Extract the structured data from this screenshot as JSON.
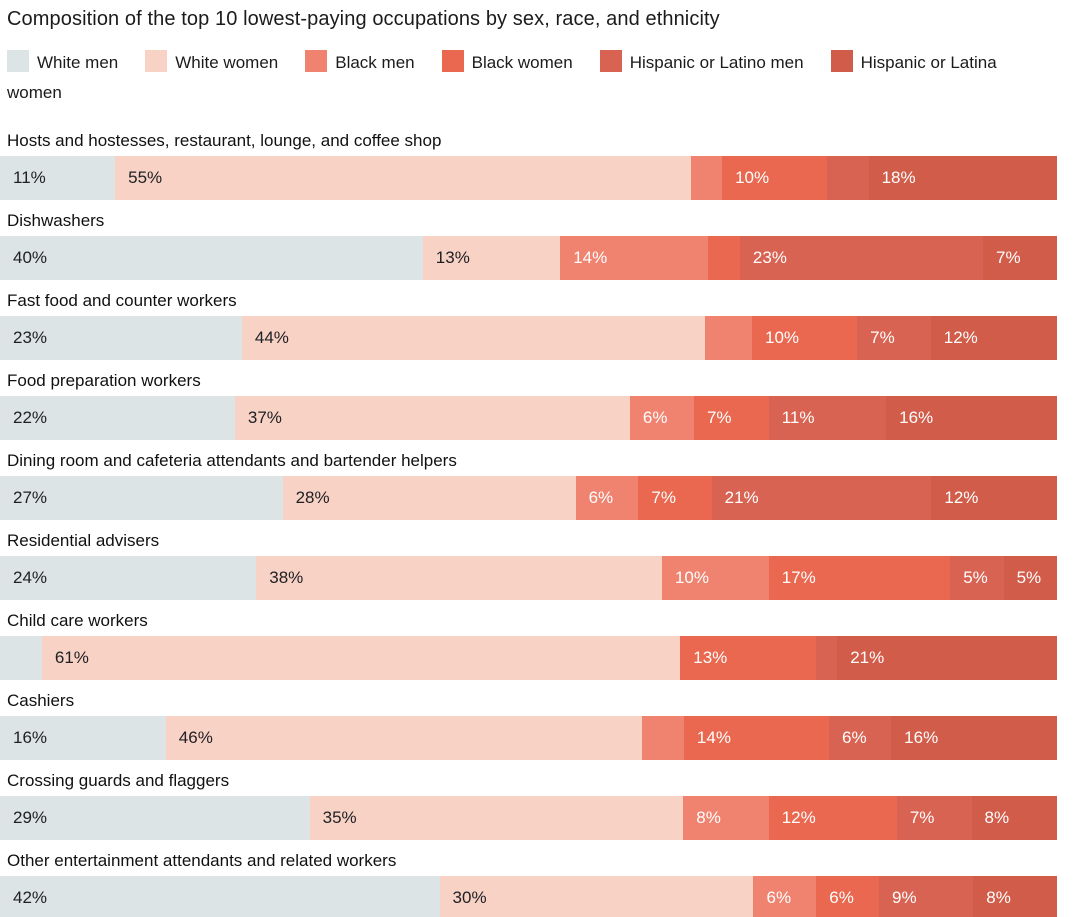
{
  "title": "Composition of the top 10 lowest-paying occupations by sex, race, and ethnicity",
  "chart_data": {
    "type": "bar",
    "stacked": true,
    "orientation": "horizontal",
    "unit": "percent",
    "title": "Composition of the top 10 lowest-paying occupations by sex, race, and ethnicity",
    "legend_position": "top",
    "legend": [
      "White men",
      "White women",
      "Black men",
      "Black women",
      "Hispanic or Latino men",
      "Hispanic or Latina women"
    ],
    "palette": {
      "White men": {
        "fill": "#dde4e6",
        "text": "#202124"
      },
      "White women": {
        "fill": "#f9d2c6",
        "text": "#202124"
      },
      "Black men": {
        "fill": "#f0836f",
        "text": "#ffffff"
      },
      "Black women": {
        "fill": "#e9684f",
        "text": "#ffffff"
      },
      "Hispanic or Latino men": {
        "fill": "#d96352",
        "text": "#ffffff"
      },
      "Hispanic or Latina women": {
        "fill": "#d25c4a",
        "text": "#ffffff"
      }
    },
    "background_strip_color": "#ededeb",
    "rows": [
      {
        "occupation": "Hosts and hostesses, restaurant, lounge, and coffee shop",
        "segments": [
          {
            "group": "White men",
            "value": 11,
            "label": "11%"
          },
          {
            "group": "White women",
            "value": 55,
            "label": "55%"
          },
          {
            "group": "Black men",
            "value": 3,
            "label": ""
          },
          {
            "group": "Black women",
            "value": 10,
            "label": "10%"
          },
          {
            "group": "Hispanic or Latino men",
            "value": 4,
            "label": ""
          },
          {
            "group": "Hispanic or Latina women",
            "value": 18,
            "label": "18%"
          }
        ]
      },
      {
        "occupation": "Dishwashers",
        "segments": [
          {
            "group": "White men",
            "value": 40,
            "label": "40%"
          },
          {
            "group": "White women",
            "value": 13,
            "label": "13%"
          },
          {
            "group": "Black men",
            "value": 14,
            "label": "14%"
          },
          {
            "group": "Black women",
            "value": 3,
            "label": ""
          },
          {
            "group": "Hispanic or Latino men",
            "value": 23,
            "label": "23%"
          },
          {
            "group": "Hispanic or Latina women",
            "value": 7,
            "label": "7%"
          }
        ]
      },
      {
        "occupation": "Fast food and counter workers",
        "segments": [
          {
            "group": "White men",
            "value": 23,
            "label": "23%"
          },
          {
            "group": "White women",
            "value": 44,
            "label": "44%"
          },
          {
            "group": "Black men",
            "value": 4.5,
            "label": ""
          },
          {
            "group": "Black women",
            "value": 10,
            "label": "10%"
          },
          {
            "group": "Hispanic or Latino men",
            "value": 7,
            "label": "7%"
          },
          {
            "group": "Hispanic or Latina women",
            "value": 12,
            "label": "12%"
          }
        ]
      },
      {
        "occupation": "Food preparation workers",
        "segments": [
          {
            "group": "White men",
            "value": 22,
            "label": "22%"
          },
          {
            "group": "White women",
            "value": 37,
            "label": "37%"
          },
          {
            "group": "Black men",
            "value": 6,
            "label": "6%"
          },
          {
            "group": "Black women",
            "value": 7,
            "label": "7%"
          },
          {
            "group": "Hispanic or Latino men",
            "value": 11,
            "label": "11%"
          },
          {
            "group": "Hispanic or Latina women",
            "value": 16,
            "label": "16%"
          }
        ]
      },
      {
        "occupation": "Dining room and cafeteria attendants and bartender helpers",
        "segments": [
          {
            "group": "White men",
            "value": 27,
            "label": "27%"
          },
          {
            "group": "White women",
            "value": 28,
            "label": "28%"
          },
          {
            "group": "Black men",
            "value": 6,
            "label": "6%"
          },
          {
            "group": "Black women",
            "value": 7,
            "label": "7%"
          },
          {
            "group": "Hispanic or Latino men",
            "value": 21,
            "label": "21%"
          },
          {
            "group": "Hispanic or Latina women",
            "value": 12,
            "label": "12%"
          }
        ]
      },
      {
        "occupation": "Residential advisers",
        "segments": [
          {
            "group": "White men",
            "value": 24,
            "label": "24%"
          },
          {
            "group": "White women",
            "value": 38,
            "label": "38%"
          },
          {
            "group": "Black men",
            "value": 10,
            "label": "10%"
          },
          {
            "group": "Black women",
            "value": 17,
            "label": "17%"
          },
          {
            "group": "Hispanic or Latino men",
            "value": 5,
            "label": "5%"
          },
          {
            "group": "Hispanic or Latina women",
            "value": 5,
            "label": "5%"
          }
        ]
      },
      {
        "occupation": "Child care workers",
        "segments": [
          {
            "group": "White men",
            "value": 4,
            "label": ""
          },
          {
            "group": "White women",
            "value": 61,
            "label": "61%"
          },
          {
            "group": "Black women",
            "value": 13,
            "label": "13%"
          },
          {
            "group": "Hispanic or Latino men",
            "value": 2,
            "label": ""
          },
          {
            "group": "Hispanic or Latina women",
            "value": 21,
            "label": "21%"
          }
        ]
      },
      {
        "occupation": "Cashiers",
        "segments": [
          {
            "group": "White men",
            "value": 16,
            "label": "16%"
          },
          {
            "group": "White women",
            "value": 46,
            "label": "46%"
          },
          {
            "group": "Black men",
            "value": 4,
            "label": ""
          },
          {
            "group": "Black women",
            "value": 14,
            "label": "14%"
          },
          {
            "group": "Hispanic or Latino men",
            "value": 6,
            "label": "6%"
          },
          {
            "group": "Hispanic or Latina women",
            "value": 16,
            "label": "16%"
          }
        ]
      },
      {
        "occupation": "Crossing guards and flaggers",
        "segments": [
          {
            "group": "White men",
            "value": 29,
            "label": "29%"
          },
          {
            "group": "White women",
            "value": 35,
            "label": "35%"
          },
          {
            "group": "Black men",
            "value": 8,
            "label": "8%"
          },
          {
            "group": "Black women",
            "value": 12,
            "label": "12%"
          },
          {
            "group": "Hispanic or Latino men",
            "value": 7,
            "label": "7%"
          },
          {
            "group": "Hispanic or Latina women",
            "value": 8,
            "label": "8%"
          }
        ]
      },
      {
        "occupation": "Other entertainment attendants and related workers",
        "segments": [
          {
            "group": "White men",
            "value": 42,
            "label": "42%"
          },
          {
            "group": "White women",
            "value": 30,
            "label": "30%"
          },
          {
            "group": "Black men",
            "value": 6,
            "label": "6%"
          },
          {
            "group": "Black women",
            "value": 6,
            "label": "6%"
          },
          {
            "group": "Hispanic or Latino men",
            "value": 9,
            "label": "9%"
          },
          {
            "group": "Hispanic or Latina women",
            "value": 8,
            "label": "8%"
          }
        ]
      }
    ]
  }
}
